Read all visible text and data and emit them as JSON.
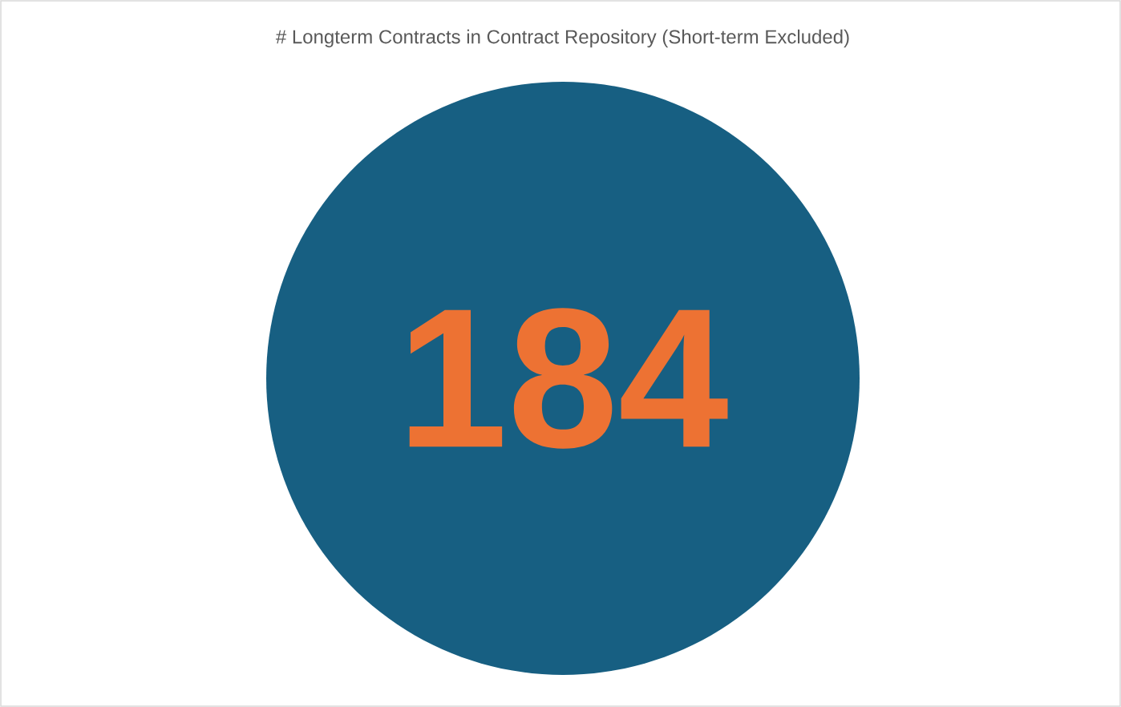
{
  "chart_data": {
    "type": "pie",
    "title": "# Longterm Contracts in Contract Repository (Short-term Excluded)",
    "categories": [
      null
    ],
    "values": [
      184
    ],
    "colors": [
      "#175f82"
    ],
    "data_labels": true
  }
}
